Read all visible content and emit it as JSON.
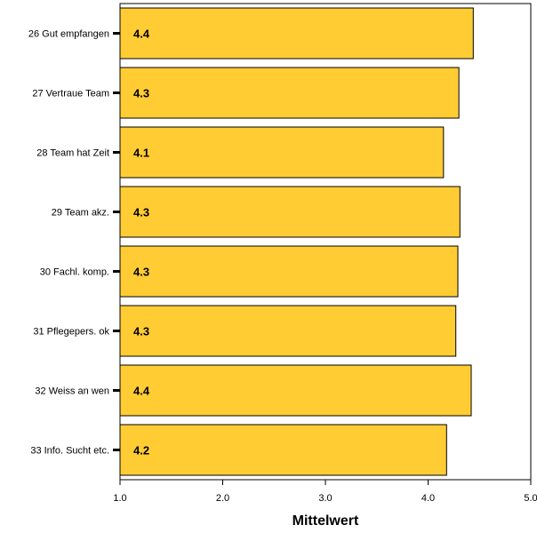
{
  "chart_data": {
    "type": "bar",
    "orientation": "horizontal",
    "categories": [
      "26 Gut empfangen",
      "27 Vertraue Team",
      "28 Team hat Zeit",
      "29 Team akz.",
      "30 Fachl. komp.",
      "31 Pflegepers. ok",
      "32 Weiss an wen",
      "33 Info. Sucht etc."
    ],
    "values": [
      4.44,
      4.3,
      4.15,
      4.31,
      4.29,
      4.27,
      4.42,
      4.18
    ],
    "data_labels": [
      "4.4",
      "4.3",
      "4.1",
      "4.3",
      "4.3",
      "4.3",
      "4.4",
      "4.2"
    ],
    "xlim": [
      1.0,
      5.0
    ],
    "x_ticks": [
      "1.0",
      "2.0",
      "3.0",
      "4.0",
      "5.0"
    ],
    "xlabel": "Mittelwert",
    "ylabel": "",
    "title": "",
    "grid": false,
    "legend": "none",
    "bar_color": "#FFCC33",
    "bar_edge_color": "#000000"
  }
}
